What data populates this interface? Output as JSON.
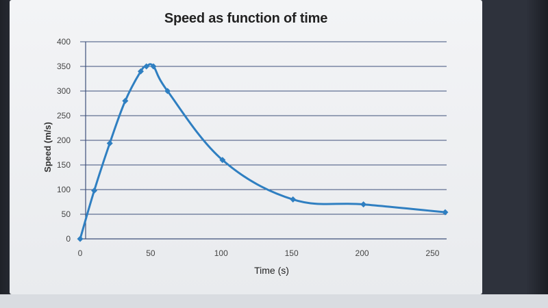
{
  "chart_data": {
    "type": "line",
    "title": "Speed as function of time",
    "xlabel": "Time (s)",
    "ylabel": "Speed (m/s)",
    "xlim": [
      0,
      260
    ],
    "ylim": [
      0,
      400
    ],
    "x_ticks": [
      "0",
      "50",
      "100",
      "150",
      "200",
      "250"
    ],
    "y_ticks": [
      "0",
      "50",
      "100",
      "150",
      "200",
      "250",
      "300",
      "350",
      "400"
    ],
    "grid": true,
    "series": [
      {
        "x": [
          0,
          10,
          21,
          32,
          43,
          47,
          52,
          62,
          101,
          151,
          201,
          259
        ],
        "y": [
          0,
          98,
          194,
          280,
          340,
          350,
          350,
          300,
          160,
          80,
          70,
          54
        ],
        "color": "#2f7fc1",
        "marker": "diamond"
      }
    ]
  }
}
